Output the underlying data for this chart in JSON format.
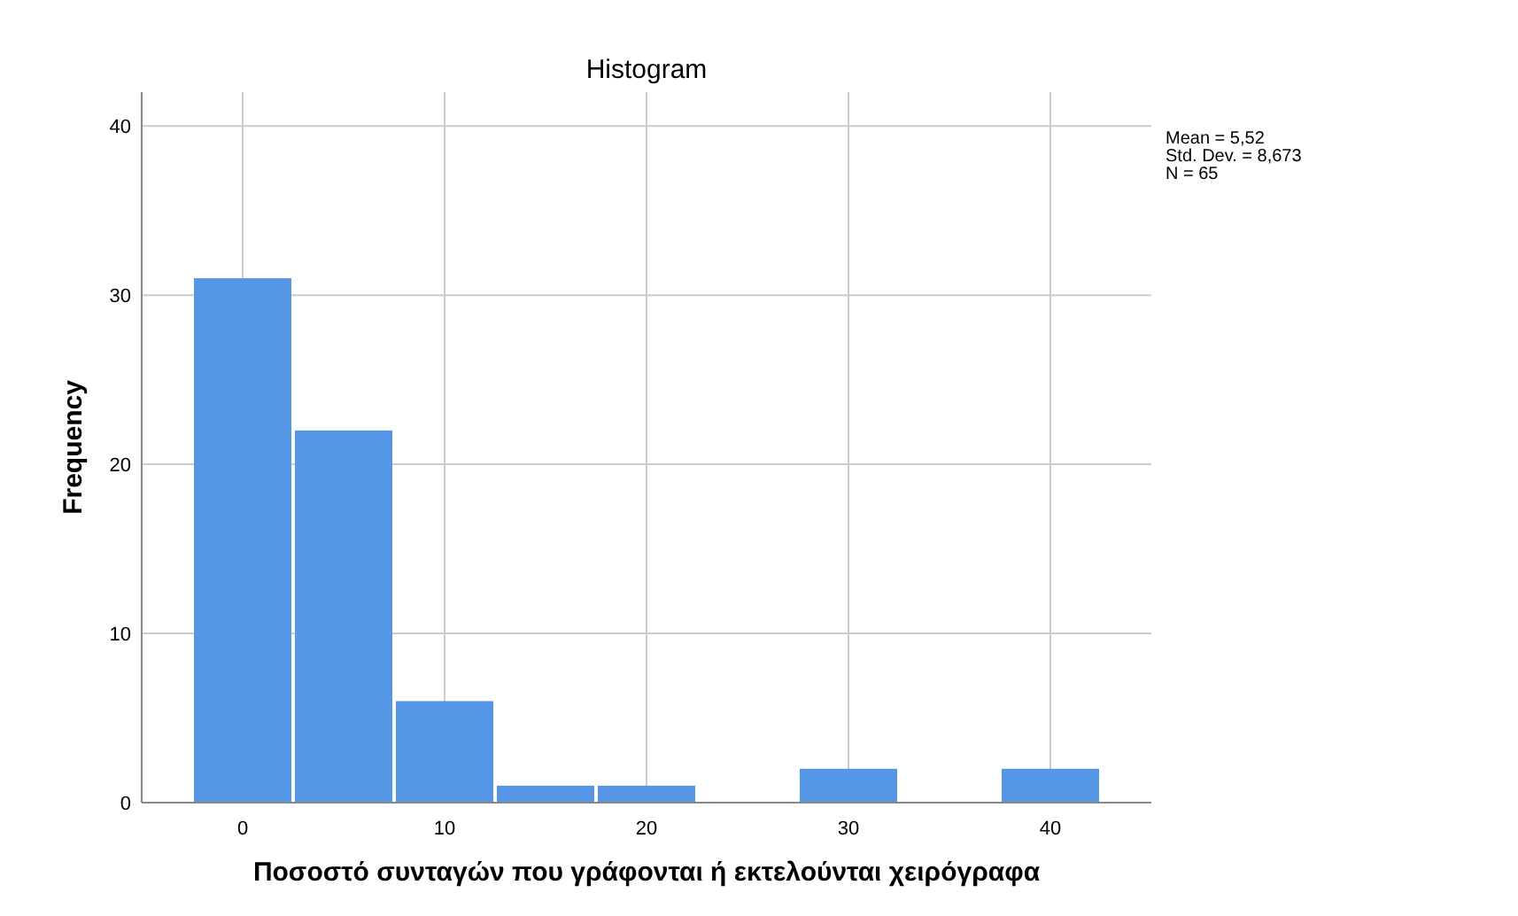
{
  "chart_data": {
    "type": "histogram",
    "title": "Histogram",
    "xlabel": "Ποσοστό συνταγών που γράφονται ή εκτελούνται χειρόγραφα",
    "ylabel": "Frequency",
    "bins": [
      -2.5,
      2.5,
      7.5,
      12.5,
      17.5,
      22.5,
      27.5,
      32.5,
      37.5,
      42.5
    ],
    "values": [
      31,
      22,
      6,
      1,
      1,
      0,
      2,
      0,
      2
    ],
    "color": "#5596e6",
    "xlim": [
      -5,
      45
    ],
    "xticks": [
      0,
      10,
      20,
      30,
      40
    ],
    "ylim": [
      0,
      42
    ],
    "yticks": [
      0,
      10,
      20,
      30,
      40
    ],
    "grid": true,
    "annotations": [
      "Mean = 5,52",
      "Std. Dev. = 8,673",
      "N = 65"
    ]
  }
}
